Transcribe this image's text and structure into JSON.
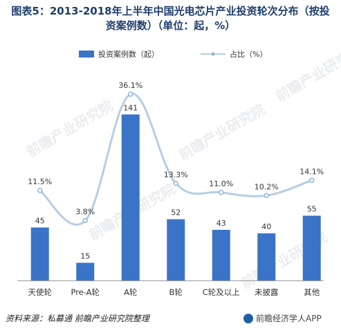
{
  "title_line1": "图表5：2013-2018年上半年中国光电芯片产业投资轮次分布（按投",
  "title_line2": "资案例数）（单位：起，%）",
  "footer": {
    "source": "资料来源：私募通   前瞻产业研究院整理",
    "app": "前瞻经济学人APP"
  },
  "watermark": "前瞻产业研究院",
  "colors": {
    "bar": "#3a73c7",
    "line": "#b5cde6",
    "marker": "#8fb2d9",
    "text": "#333333"
  },
  "chart_data": {
    "type": "bar",
    "categories": [
      "天使轮",
      "Pre-A轮",
      "A轮",
      "B轮",
      "C轮及以上",
      "未披露",
      "其他"
    ],
    "series": [
      {
        "name": "投资案例数（起）",
        "type": "bar",
        "values": [
          45,
          15,
          141,
          52,
          43,
          40,
          55
        ]
      },
      {
        "name": "占比（%）",
        "type": "line",
        "values": [
          11.5,
          3.8,
          36.1,
          13.3,
          11.0,
          10.2,
          14.1
        ],
        "labels": [
          "11.5%",
          "3.8%",
          "36.1%",
          "13.3%",
          "11.0%",
          "10.2%",
          "14.1%"
        ]
      }
    ],
    "legend": "top",
    "grid": false
  }
}
